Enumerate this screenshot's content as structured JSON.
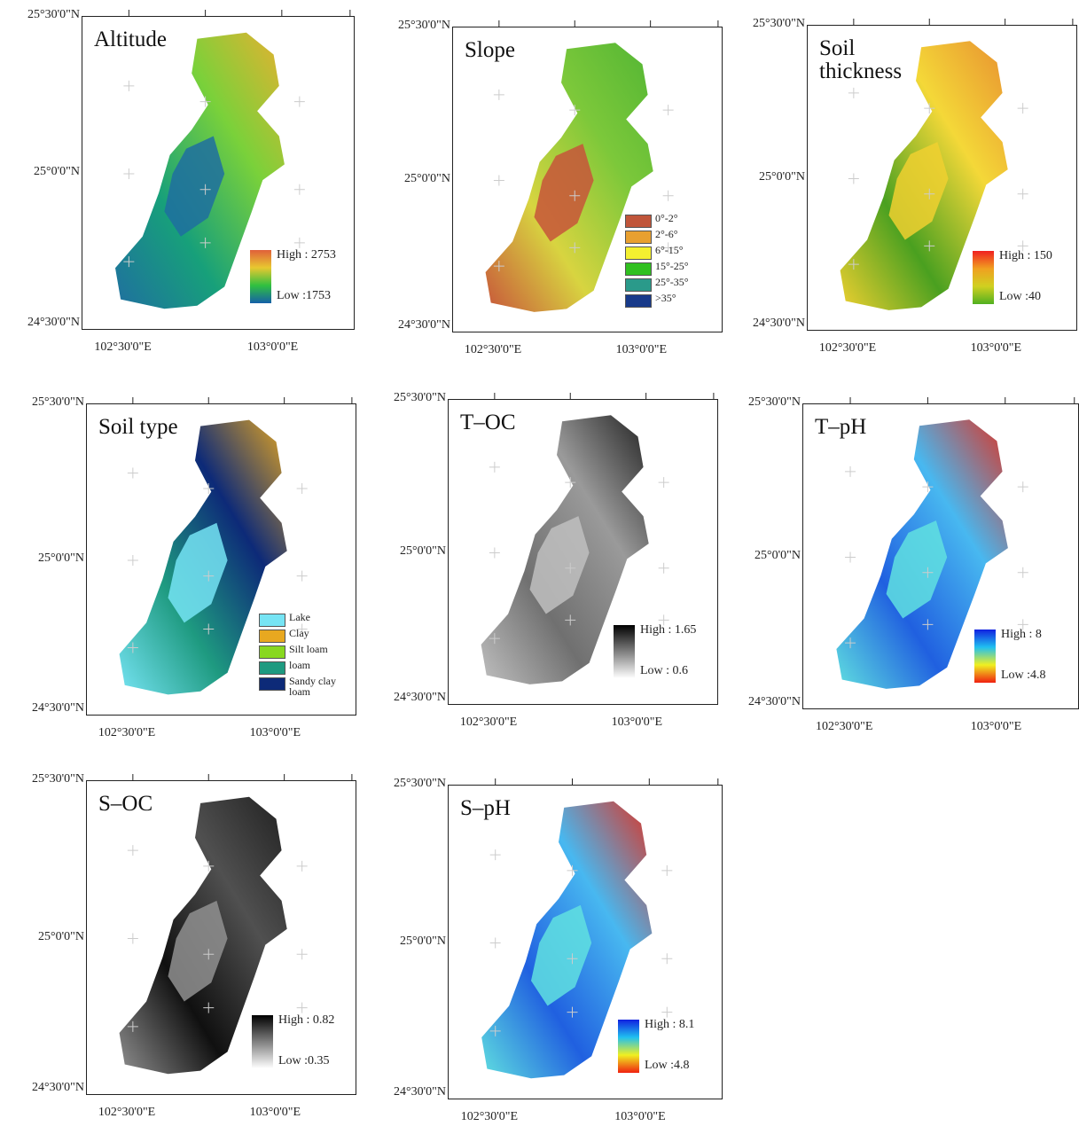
{
  "panels": [
    {
      "title": "Altitude",
      "lat_labels": [
        "25°30'0\"N",
        "25°0'0\"N",
        "24°30'0\"N"
      ],
      "lon_labels": [
        "102°30'0\"E",
        "103°0'0\"E"
      ],
      "fill": [
        "#1f6fa0",
        "#17a07a",
        "#7ad13a",
        "#e8b030"
      ],
      "legend": {
        "high": "High : 2753",
        "low": "Low :1753",
        "colors": [
          "#e0603a",
          "#e8c830",
          "#30c040",
          "#1560a8"
        ]
      }
    },
    {
      "title": "Slope",
      "lat_labels": [
        "25°30'0\"N",
        "25°0'0\"N",
        "24°30'0\"N"
      ],
      "lon_labels": [
        "102°30'0\"E",
        "103°0'0\"E"
      ],
      "fill": [
        "#c7553a",
        "#d8d440",
        "#7cc83a",
        "#52b534"
      ],
      "legend": {
        "items": [
          {
            "label": "0°-2°",
            "color": "#c0553a"
          },
          {
            "label": "2°-6°",
            "color": "#e8a030"
          },
          {
            "label": "6°-15°",
            "color": "#f4f030"
          },
          {
            "label": "15°-25°",
            "color": "#30c020"
          },
          {
            "label": "25°-35°",
            "color": "#2a9a8a"
          },
          {
            "label": ">35°",
            "color": "#183a8a"
          }
        ]
      }
    },
    {
      "title": "Soil thickness",
      "lat_labels": [
        "25°30'0\"N",
        "25°0'0\"N",
        "24°30'0\"N"
      ],
      "lon_labels": [
        "102°30'0\"E",
        "103°0'0\"E"
      ],
      "fill": [
        "#f0d030",
        "#4aa020",
        "#f4d838",
        "#e89030"
      ],
      "legend": {
        "high": "High : 150",
        "low": "Low :40",
        "colors": [
          "#f02020",
          "#f0a020",
          "#d0d020",
          "#50b020"
        ]
      }
    },
    {
      "title": "Soil type",
      "lat_labels": [
        "25°30'0\"N",
        "25°0'0\"N",
        "24°30'0\"N"
      ],
      "lon_labels": [
        "102°30'0\"E",
        "103°0'0\"E"
      ],
      "fill": [
        "#76e4f4",
        "#1e9a80",
        "#0d2a78",
        "#e8a820"
      ],
      "legend": {
        "items": [
          {
            "label": "Lake",
            "color": "#76e4f4"
          },
          {
            "label": "Clay",
            "color": "#e8a820"
          },
          {
            "label": "Silt loam",
            "color": "#88d820"
          },
          {
            "label": "loam",
            "color": "#1e9a80"
          },
          {
            "label": "Sandy clay loam",
            "color": "#0d2a78"
          }
        ]
      }
    },
    {
      "title": "T–OC",
      "lat_labels": [
        "25°30'0\"N",
        "25°0'0\"N",
        "24°30'0\"N"
      ],
      "lon_labels": [
        "102°30'0\"E",
        "103°0'0\"E"
      ],
      "fill": [
        "#c0c0c0",
        "#707070",
        "#9a9a9a",
        "#202020"
      ],
      "legend": {
        "high": "High : 1.65",
        "low": "Low : 0.6",
        "colors": [
          "#000000",
          "#ffffff"
        ]
      }
    },
    {
      "title": "T–pH",
      "lat_labels": [
        "25°30'0\"N",
        "25°0'0\"N",
        "24°30'0\"N"
      ],
      "lon_labels": [
        "102°30'0\"E",
        "103°0'0\"E"
      ],
      "fill": [
        "#60e0e0",
        "#2060e0",
        "#48b8f0",
        "#e03020"
      ],
      "legend": {
        "high": "High : 8",
        "low": "Low :4.8",
        "colors": [
          "#1020e0",
          "#20c0f0",
          "#f0f020",
          "#f02010"
        ]
      }
    },
    {
      "title": "S–OC",
      "lat_labels": [
        "25°30'0\"N",
        "25°0'0\"N",
        "24°30'0\"N"
      ],
      "lon_labels": [
        "102°30'0\"E",
        "103°0'0\"E"
      ],
      "fill": [
        "#909090",
        "#101010",
        "#505050",
        "#202020"
      ],
      "legend": {
        "high": "High : 0.82",
        "low": "Low :0.35",
        "colors": [
          "#000000",
          "#ffffff"
        ]
      }
    },
    {
      "title": "S–pH",
      "lat_labels": [
        "25°30'0\"N",
        "25°0'0\"N",
        "24°30'0\"N"
      ],
      "lon_labels": [
        "102°30'0\"E",
        "103°0'0\"E"
      ],
      "fill": [
        "#60e0e0",
        "#2060e0",
        "#48b8f0",
        "#e03020"
      ],
      "legend": {
        "high": "High : 8.1",
        "low": "Low :4.8",
        "colors": [
          "#1020e0",
          "#20c0f0",
          "#f0f020",
          "#f02010"
        ]
      }
    }
  ]
}
